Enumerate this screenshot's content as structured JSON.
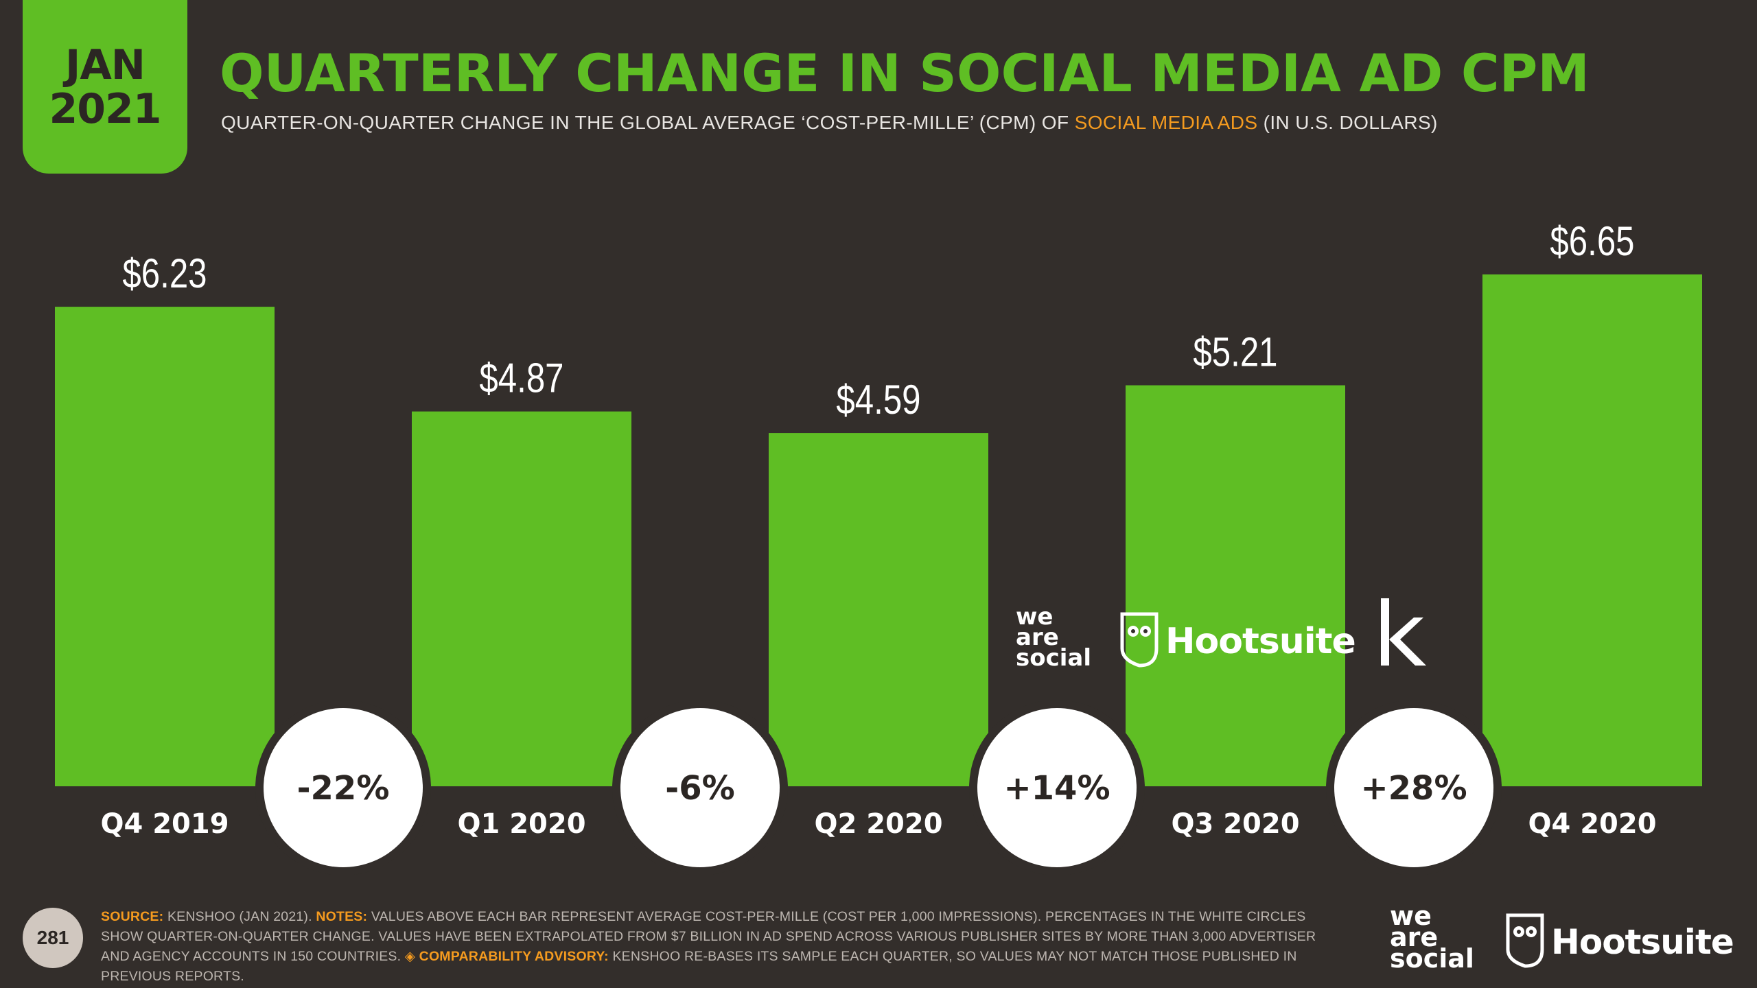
{
  "badge": {
    "month": "JAN",
    "year": "2021"
  },
  "header": {
    "title": "QUARTERLY CHANGE IN SOCIAL MEDIA AD CPM",
    "subtitle_before": "QUARTER-ON-QUARTER CHANGE IN THE GLOBAL AVERAGE ‘COST-PER-MILLE’ (CPM) OF ",
    "subtitle_highlight": "SOCIAL MEDIA ADS",
    "subtitle_after": " (IN U.S. DOLLARS)"
  },
  "chart_data": {
    "type": "bar",
    "categories": [
      "Q4 2019",
      "Q1 2020",
      "Q2 2020",
      "Q3 2020",
      "Q4 2020"
    ],
    "values": [
      6.23,
      4.87,
      4.59,
      5.21,
      6.65
    ],
    "value_labels": [
      "$6.23",
      "$4.87",
      "$4.59",
      "$5.21",
      "$6.65"
    ],
    "changes": [
      "-22%",
      "-6%",
      "+14%",
      "+28%"
    ],
    "ylim": [
      0,
      6.65
    ],
    "bar_color": "#5fbe24"
  },
  "logos": {
    "was": [
      "we",
      "are",
      "social"
    ],
    "hootsuite": "Hootsuite",
    "kenshoo_mark": "k"
  },
  "footer": {
    "page_number": "281",
    "source_label": "SOURCE:",
    "source_text": " KENSHOO (JAN 2021). ",
    "notes_label": "NOTES:",
    "notes_text": " VALUES ABOVE EACH BAR REPRESENT AVERAGE COST-PER-MILLE (COST PER 1,000 IMPRESSIONS). PERCENTAGES IN THE WHITE CIRCLES SHOW QUARTER-ON-QUARTER CHANGE. VALUES HAVE BEEN EXTRAPOLATED FROM $7 BILLION IN AD SPEND ACROSS VARIOUS PUBLISHER SITES BY MORE THAN 3,000 ADVERTISER AND AGENCY ACCOUNTS IN 150 COUNTRIES. ",
    "advisory_label": "◈ COMPARABILITY ADVISORY:",
    "advisory_text": " KENSHOO RE-BASES ITS SAMPLE EACH QUARTER, SO VALUES MAY NOT MATCH THOSE PUBLISHED IN PREVIOUS REPORTS."
  },
  "colors": {
    "background": "#332e2b",
    "accent_green": "#5fbe24",
    "highlight_orange": "#f59b1f"
  }
}
